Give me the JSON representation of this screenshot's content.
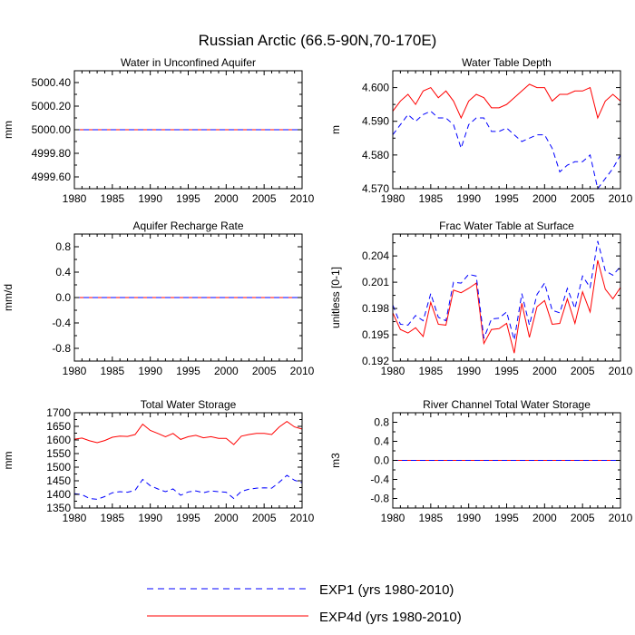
{
  "figure": {
    "title": "Russian Arctic (66.5-90N,70-170E)",
    "legend": {
      "placement": "bottom-center",
      "items": [
        {
          "label": "EXP1 (yrs 1980-2010)",
          "color": "#0000ff",
          "dash": "dashed"
        },
        {
          "label": "EXP4d (yrs 1980-2010)",
          "color": "#ff0000",
          "dash": "solid"
        }
      ]
    }
  },
  "chart_data": [
    {
      "type": "line",
      "title": "Water in Unconfined Aquifer",
      "ylabel": "mm",
      "xlim": [
        1980,
        2010
      ],
      "xticks": [
        1980,
        1985,
        1990,
        1995,
        2000,
        2005,
        2010
      ],
      "ylim": [
        4999.5,
        5000.5
      ],
      "yticks": [
        4999.6,
        4999.8,
        5000.0,
        5000.2,
        5000.4
      ],
      "yticklabels": [
        "4999.60",
        "4999.80",
        "5000.00",
        "5000.20",
        "5000.40"
      ],
      "x": [
        1980,
        2010
      ],
      "series": [
        {
          "name": "EXP4d (yrs 1980-2010)",
          "color": "#ff0000",
          "dash": "solid",
          "values": [
            5000.0,
            5000.0
          ]
        },
        {
          "name": "EXP1 (yrs 1980-2010)",
          "color": "#0000ff",
          "dash": "dashed",
          "values": [
            5000.0,
            5000.0
          ]
        }
      ]
    },
    {
      "type": "line",
      "title": "Water Table Depth",
      "ylabel": "m",
      "xlim": [
        1980,
        2010
      ],
      "xticks": [
        1980,
        1985,
        1990,
        1995,
        2000,
        2005,
        2010
      ],
      "ylim": [
        4.57,
        4.605
      ],
      "yticks": [
        4.57,
        4.58,
        4.59,
        4.6
      ],
      "yticklabels": [
        "4.570",
        "4.580",
        "4.590",
        "4.600"
      ],
      "x": [
        1980,
        1981,
        1982,
        1983,
        1984,
        1985,
        1986,
        1987,
        1988,
        1989,
        1990,
        1991,
        1992,
        1993,
        1994,
        1995,
        1996,
        1997,
        1998,
        1999,
        2000,
        2001,
        2002,
        2003,
        2004,
        2005,
        2006,
        2007,
        2008,
        2009,
        2010
      ],
      "series": [
        {
          "name": "EXP4d (yrs 1980-2010)",
          "color": "#ff0000",
          "dash": "solid",
          "values": [
            4.593,
            4.596,
            4.598,
            4.595,
            4.599,
            4.6,
            4.597,
            4.599,
            4.596,
            4.591,
            4.596,
            4.598,
            4.597,
            4.594,
            4.594,
            4.595,
            4.597,
            4.599,
            4.601,
            4.6,
            4.6,
            4.596,
            4.598,
            4.598,
            4.599,
            4.599,
            4.6,
            4.591,
            4.596,
            4.598,
            4.596
          ]
        },
        {
          "name": "EXP1 (yrs 1980-2010)",
          "color": "#0000ff",
          "dash": "dashed",
          "values": [
            4.586,
            4.589,
            4.592,
            4.59,
            4.592,
            4.593,
            4.591,
            4.591,
            4.589,
            4.582,
            4.589,
            4.591,
            4.591,
            4.587,
            4.587,
            4.588,
            4.586,
            4.584,
            4.585,
            4.586,
            4.586,
            4.582,
            4.575,
            4.577,
            4.578,
            4.578,
            4.58,
            4.57,
            4.573,
            4.576,
            4.58
          ]
        }
      ]
    },
    {
      "type": "line",
      "title": "Aquifer Recharge Rate",
      "ylabel": "mm/d",
      "xlim": [
        1980,
        2010
      ],
      "xticks": [
        1980,
        1985,
        1990,
        1995,
        2000,
        2005,
        2010
      ],
      "ylim": [
        -1.0,
        1.0
      ],
      "yticks": [
        -0.8,
        -0.4,
        0.0,
        0.4,
        0.8
      ],
      "yticklabels": [
        "-0.8",
        "-0.4",
        "0.0",
        "0.4",
        "0.8"
      ],
      "x": [
        1980,
        2010
      ],
      "series": [
        {
          "name": "EXP4d (yrs 1980-2010)",
          "color": "#ff0000",
          "dash": "solid",
          "values": [
            0.0,
            0.0
          ]
        },
        {
          "name": "EXP1 (yrs 1980-2010)",
          "color": "#0000ff",
          "dash": "dashed",
          "values": [
            0.0,
            0.0
          ]
        }
      ]
    },
    {
      "type": "line",
      "title": "Frac Water Table at Surface",
      "ylabel": "unitless [0-1]",
      "xlim": [
        1980,
        2010
      ],
      "xticks": [
        1980,
        1985,
        1990,
        1995,
        2000,
        2005,
        2010
      ],
      "ylim": [
        0.192,
        0.2065
      ],
      "yticks": [
        0.192,
        0.195,
        0.198,
        0.201,
        0.204
      ],
      "yticklabels": [
        "0.192",
        "0.195",
        "0.198",
        "0.201",
        "0.204"
      ],
      "x": [
        1980,
        1981,
        1982,
        1983,
        1984,
        1985,
        1986,
        1987,
        1988,
        1989,
        1990,
        1991,
        1992,
        1993,
        1994,
        1995,
        1996,
        1997,
        1998,
        1999,
        2000,
        2001,
        2002,
        2003,
        2004,
        2005,
        2006,
        2007,
        2008,
        2009,
        2010
      ],
      "series": [
        {
          "name": "EXP4d (yrs 1980-2010)",
          "color": "#ff0000",
          "dash": "solid",
          "values": [
            0.1975,
            0.1956,
            0.1952,
            0.1958,
            0.1948,
            0.1987,
            0.1962,
            0.1961,
            0.2001,
            0.1998,
            0.2003,
            0.2009,
            0.194,
            0.1956,
            0.1957,
            0.1963,
            0.1929,
            0.1986,
            0.1947,
            0.1982,
            0.1989,
            0.1962,
            0.1963,
            0.1991,
            0.1963,
            0.1999,
            0.1976,
            0.2035,
            0.2002,
            0.1991,
            0.2004
          ]
        },
        {
          "name": "EXP1 (yrs 1980-2010)",
          "color": "#0000ff",
          "dash": "dashed",
          "values": [
            0.1984,
            0.1962,
            0.1961,
            0.1972,
            0.1966,
            0.1997,
            0.197,
            0.1966,
            0.201,
            0.2009,
            0.2019,
            0.2017,
            0.1946,
            0.1968,
            0.1969,
            0.1976,
            0.1944,
            0.1997,
            0.1961,
            0.1996,
            0.2009,
            0.1978,
            0.1975,
            0.2003,
            0.198,
            0.2017,
            0.2004,
            0.2057,
            0.2023,
            0.2018,
            0.2028
          ]
        }
      ]
    },
    {
      "type": "line",
      "title": "Total Water Storage",
      "ylabel": "mm",
      "xlim": [
        1980,
        2010
      ],
      "xticks": [
        1980,
        1985,
        1990,
        1995,
        2000,
        2005,
        2010
      ],
      "ylim": [
        1350,
        1700
      ],
      "yticks": [
        1350,
        1400,
        1450,
        1500,
        1550,
        1600,
        1650,
        1700
      ],
      "yticklabels": [
        "1350",
        "1400",
        "1450",
        "1500",
        "1550",
        "1600",
        "1650",
        "1700"
      ],
      "x": [
        1980,
        1981,
        1982,
        1983,
        1984,
        1985,
        1986,
        1987,
        1988,
        1989,
        1990,
        1991,
        1992,
        1993,
        1994,
        1995,
        1996,
        1997,
        1998,
        1999,
        2000,
        2001,
        2002,
        2003,
        2004,
        2005,
        2006,
        2007,
        2008,
        2009,
        2010
      ],
      "series": [
        {
          "name": "EXP4d (yrs 1980-2010)",
          "color": "#ff0000",
          "dash": "solid",
          "values": [
            1603,
            1607,
            1597,
            1590,
            1598,
            1610,
            1614,
            1613,
            1620,
            1658,
            1635,
            1624,
            1612,
            1624,
            1602,
            1612,
            1617,
            1608,
            1612,
            1606,
            1606,
            1583,
            1614,
            1620,
            1624,
            1624,
            1620,
            1648,
            1668,
            1648,
            1640
          ]
        },
        {
          "name": "EXP1 (yrs 1980-2010)",
          "color": "#0000ff",
          "dash": "dashed",
          "values": [
            1403,
            1399,
            1385,
            1382,
            1392,
            1406,
            1410,
            1408,
            1415,
            1455,
            1432,
            1420,
            1410,
            1420,
            1397,
            1409,
            1413,
            1406,
            1413,
            1410,
            1408,
            1385,
            1411,
            1419,
            1423,
            1424,
            1423,
            1445,
            1470,
            1452,
            1443
          ]
        }
      ]
    },
    {
      "type": "line",
      "title": "River Channel Total Water Storage",
      "ylabel": "m3",
      "xlim": [
        1980,
        2010
      ],
      "xticks": [
        1980,
        1985,
        1990,
        1995,
        2000,
        2005,
        2010
      ],
      "ylim": [
        -1.0,
        1.0
      ],
      "yticks": [
        -0.8,
        -0.4,
        0.0,
        0.4,
        0.8
      ],
      "yticklabels": [
        "-0.8",
        "-0.4",
        "0.0",
        "0.4",
        "0.8"
      ],
      "x": [
        1980,
        2010
      ],
      "series": [
        {
          "name": "EXP4d (yrs 1980-2010)",
          "color": "#ff0000",
          "dash": "solid",
          "values": [
            0.0,
            0.0
          ]
        },
        {
          "name": "EXP1 (yrs 1980-2010)",
          "color": "#0000ff",
          "dash": "dashed",
          "values": [
            0.0,
            0.0
          ]
        }
      ]
    }
  ]
}
